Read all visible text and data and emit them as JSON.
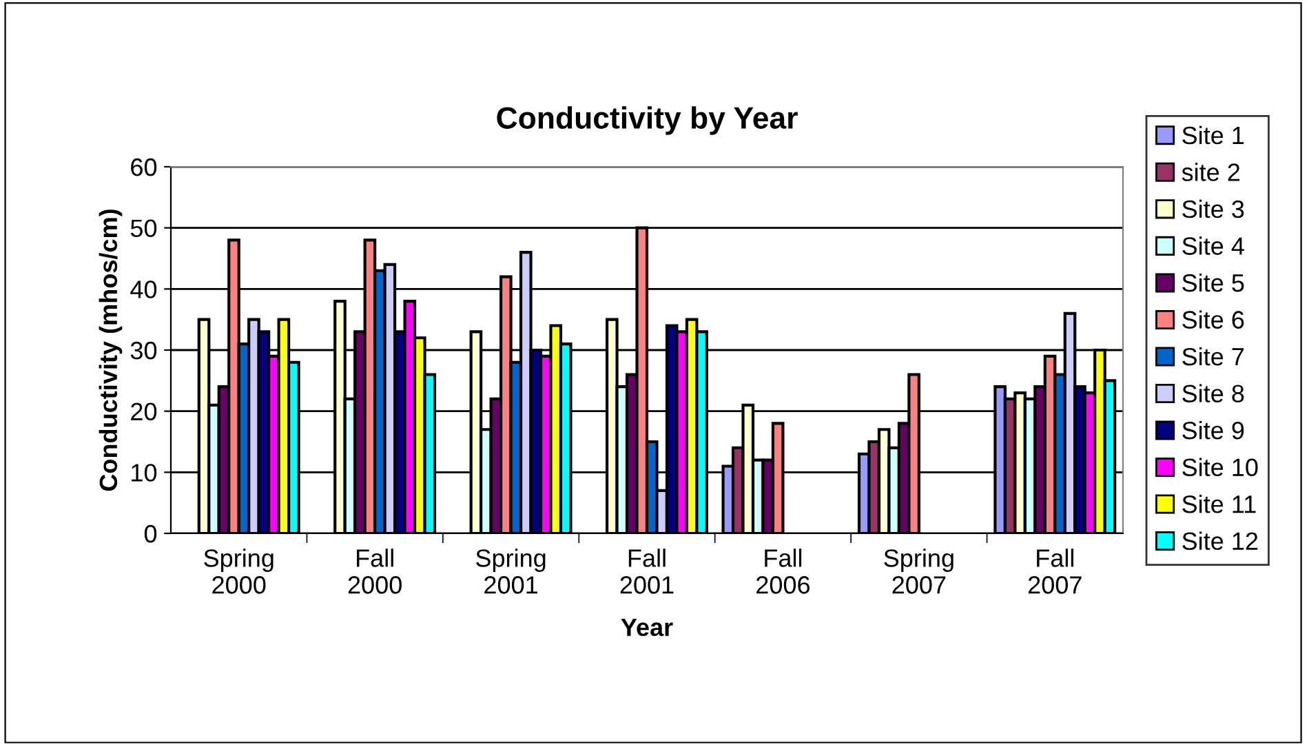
{
  "chart_data": {
    "type": "bar",
    "title": "Conductivity by Year",
    "xlabel": "Year",
    "ylabel": "Conductivity (mhos/cm)",
    "categories": [
      "Spring\n2000",
      "Fall\n2000",
      "Spring\n2001",
      "Fall\n2001",
      "Fall\n2006",
      "Spring\n2007",
      "Fall\n2007"
    ],
    "series": [
      {
        "name": "Site 1",
        "color": "#9999ff",
        "values": [
          null,
          null,
          null,
          null,
          11,
          13,
          24
        ]
      },
      {
        "name": "site 2",
        "color": "#993366",
        "values": [
          null,
          null,
          null,
          null,
          14,
          15,
          22
        ]
      },
      {
        "name": "Site 3",
        "color": "#ffffcc",
        "values": [
          35,
          38,
          33,
          35,
          21,
          17,
          23
        ]
      },
      {
        "name": "Site 4",
        "color": "#ccffff",
        "values": [
          21,
          22,
          17,
          24,
          12,
          14,
          22
        ]
      },
      {
        "name": "Site 5",
        "color": "#660066",
        "values": [
          24,
          33,
          22,
          26,
          12,
          18,
          24
        ]
      },
      {
        "name": "Site 6",
        "color": "#ff8080",
        "values": [
          48,
          48,
          42,
          50,
          18,
          26,
          29
        ]
      },
      {
        "name": "Site 7",
        "color": "#0066cc",
        "values": [
          31,
          43,
          28,
          15,
          null,
          null,
          26
        ]
      },
      {
        "name": "Site 8",
        "color": "#ccccff",
        "values": [
          35,
          44,
          46,
          7,
          null,
          null,
          36
        ]
      },
      {
        "name": "Site 9",
        "color": "#000080",
        "values": [
          33,
          33,
          30,
          34,
          null,
          null,
          24
        ]
      },
      {
        "name": "Site 10",
        "color": "#ff00ff",
        "values": [
          29,
          38,
          29,
          33,
          null,
          null,
          23
        ]
      },
      {
        "name": "Site 11",
        "color": "#ffff00",
        "values": [
          35,
          32,
          34,
          35,
          null,
          null,
          30
        ]
      },
      {
        "name": "Site 12",
        "color": "#00ffff",
        "values": [
          28,
          26,
          31,
          33,
          null,
          null,
          25
        ]
      }
    ],
    "ylim": [
      0,
      60
    ],
    "yticks": [
      0,
      10,
      20,
      30,
      40,
      50,
      60
    ],
    "grid": "y",
    "legend": "right"
  }
}
